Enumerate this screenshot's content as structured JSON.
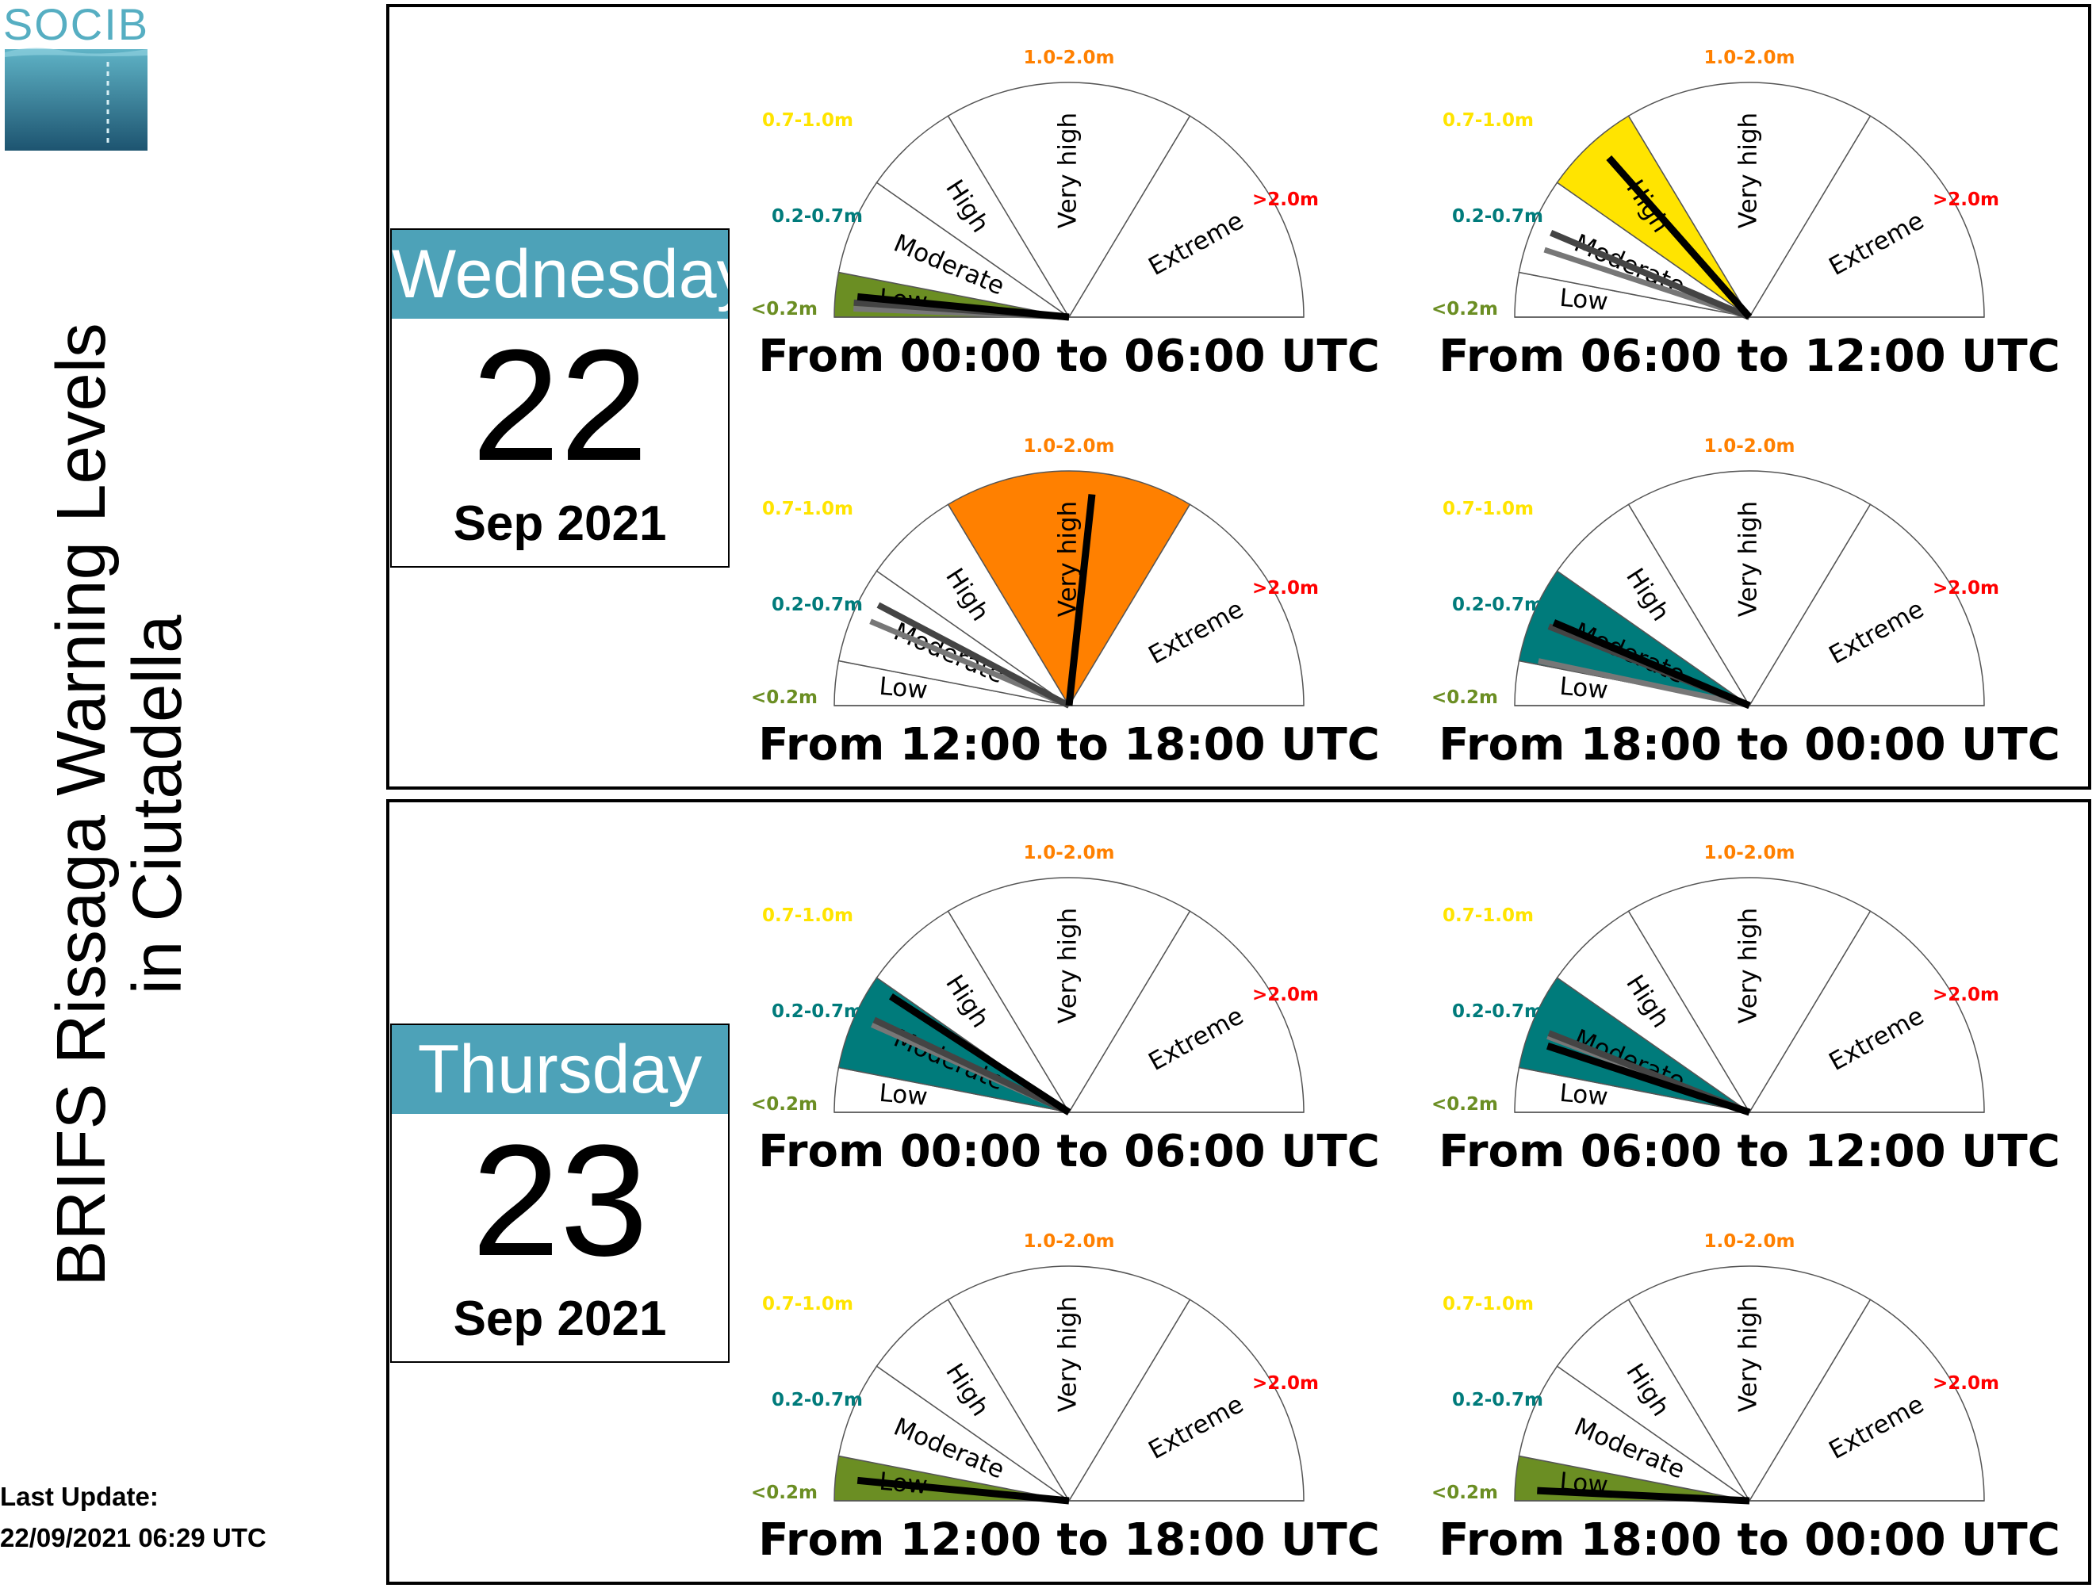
{
  "logo": {
    "text": "SOCIB"
  },
  "title": {
    "line1": "BRIFS Rissaga Warning Levels",
    "line2": "in Ciutadella"
  },
  "last_update": {
    "label": "Last Update:",
    "value": "22/09/2021 06:29 UTC"
  },
  "colors": {
    "low": "#6b8e23",
    "moderate": "#007b7b",
    "high": "#ffe400",
    "very_high": "#ff8000",
    "extreme": "#ff0000",
    "date_header": "#4da2b8",
    "needle_main": "#000000",
    "needle_secondary_1": "#444444",
    "needle_secondary_2": "#777777"
  },
  "chart_data": {
    "type": "gauge",
    "categories": [
      {
        "name": "Low",
        "range": "<0.2m",
        "range_color": "#6b8e23"
      },
      {
        "name": "Moderate",
        "range": "0.2-0.7m",
        "range_color": "#007b7b"
      },
      {
        "name": "High",
        "range": "0.7-1.0m",
        "range_color": "#ffe400"
      },
      {
        "name": "Very high",
        "range": "1.0-2.0m",
        "range_color": "#ff8000"
      },
      {
        "name": "Extreme",
        "range": ">2.0m",
        "range_color": "#ff0000"
      }
    ],
    "days": [
      {
        "weekday": "Wednesday",
        "day": "22",
        "month_year": "Sep 2021",
        "periods": [
          {
            "label": "From 00:00 to 06:00 UTC",
            "level": 0,
            "needles": [
              0.1,
              0.07,
              0.04
            ]
          },
          {
            "label": "From 06:00 to 12:00 UTC",
            "level": 2,
            "needles": [
              0.87,
              0.45,
              0.35
            ]
          },
          {
            "label": "From 12:00 to 18:00 UTC",
            "level": 3,
            "needles": [
              1.6,
              0.55,
              0.45
            ]
          },
          {
            "label": "From 18:00 to 00:00 UTC",
            "level": 1,
            "needles": [
              0.45,
              0.42,
              0.22
            ]
          }
        ]
      },
      {
        "weekday": "Thursday",
        "day": "23",
        "month_year": "Sep 2021",
        "periods": [
          {
            "label": "From 00:00 to 06:00 UTC",
            "level": 1,
            "needles": [
              0.66,
              0.5,
              0.47
            ]
          },
          {
            "label": "From 06:00 to 12:00 UTC",
            "level": 1,
            "needles": [
              0.35,
              0.42,
              0.4
            ]
          },
          {
            "label": "From 12:00 to 18:00 UTC",
            "level": 0,
            "needles": [
              0.1
            ]
          },
          {
            "label": "From 18:00 to 00:00 UTC",
            "level": 0,
            "needles": [
              0.05
            ]
          }
        ]
      }
    ]
  }
}
